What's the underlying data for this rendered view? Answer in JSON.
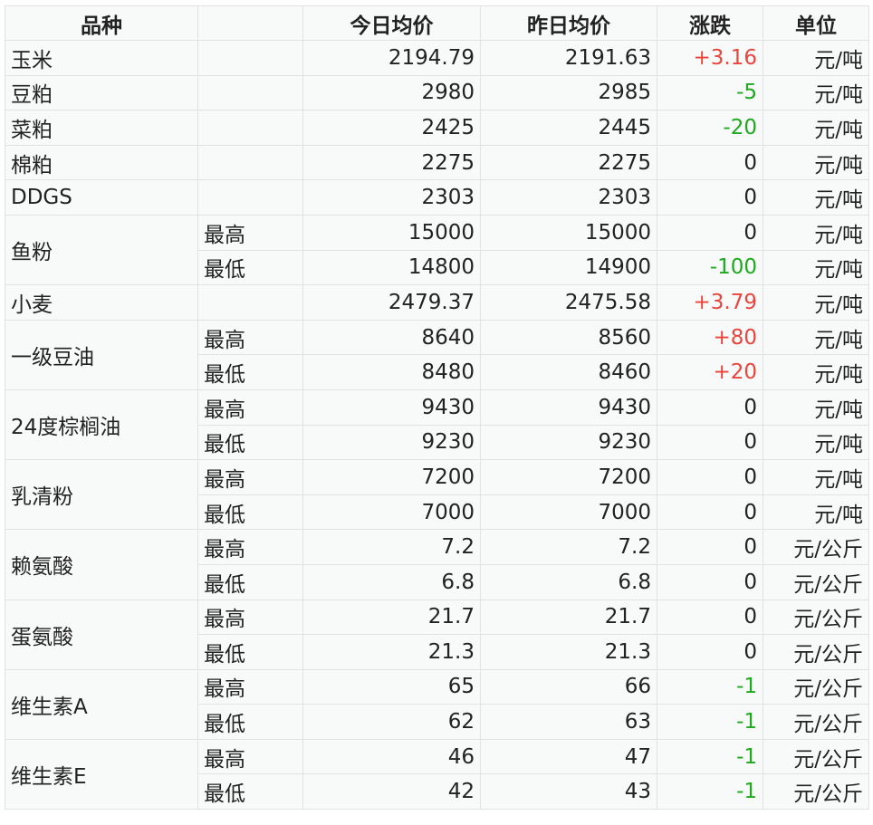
{
  "header": {
    "variety": "品种",
    "sub": "",
    "today": "今日均价",
    "yesterday": "昨日均价",
    "change": "涨跌",
    "unit": "单位"
  },
  "colors": {
    "up": "#e8453c",
    "down": "#1daa1d"
  },
  "rows": [
    {
      "name": "玉米",
      "span": 1,
      "sub": "",
      "today": "2194.79",
      "yesterday": "2191.63",
      "change": "+3.16",
      "dir": "up",
      "unit": "元/吨"
    },
    {
      "name": "豆粕",
      "span": 1,
      "sub": "",
      "today": "2980",
      "yesterday": "2985",
      "change": "-5",
      "dir": "down",
      "unit": "元/吨"
    },
    {
      "name": "菜粕",
      "span": 1,
      "sub": "",
      "today": "2425",
      "yesterday": "2445",
      "change": "-20",
      "dir": "down",
      "unit": "元/吨"
    },
    {
      "name": "棉粕",
      "span": 1,
      "sub": "",
      "today": "2275",
      "yesterday": "2275",
      "change": "0",
      "dir": "flat",
      "unit": "元/吨"
    },
    {
      "name": "DDGS",
      "span": 1,
      "sub": "",
      "today": "2303",
      "yesterday": "2303",
      "change": "0",
      "dir": "flat",
      "unit": "元/吨"
    },
    {
      "name": "鱼粉",
      "span": 2,
      "sub": "最高",
      "today": "15000",
      "yesterday": "15000",
      "change": "0",
      "dir": "flat",
      "unit": "元/吨"
    },
    {
      "sub": "最低",
      "today": "14800",
      "yesterday": "14900",
      "change": "-100",
      "dir": "down",
      "unit": "元/吨"
    },
    {
      "name": "小麦",
      "span": 1,
      "sub": "",
      "today": "2479.37",
      "yesterday": "2475.58",
      "change": "+3.79",
      "dir": "up",
      "unit": "元/吨"
    },
    {
      "name": "一级豆油",
      "span": 2,
      "sub": "最高",
      "today": "8640",
      "yesterday": "8560",
      "change": "+80",
      "dir": "up",
      "unit": "元/吨"
    },
    {
      "sub": "最低",
      "today": "8480",
      "yesterday": "8460",
      "change": "+20",
      "dir": "up",
      "unit": "元/吨"
    },
    {
      "name": "24度棕榈油",
      "span": 2,
      "sub": "最高",
      "today": "9430",
      "yesterday": "9430",
      "change": "0",
      "dir": "flat",
      "unit": "元/吨"
    },
    {
      "sub": "最低",
      "today": "9230",
      "yesterday": "9230",
      "change": "0",
      "dir": "flat",
      "unit": "元/吨"
    },
    {
      "name": "乳清粉",
      "span": 2,
      "sub": "最高",
      "today": "7200",
      "yesterday": "7200",
      "change": "0",
      "dir": "flat",
      "unit": "元/吨"
    },
    {
      "sub": "最低",
      "today": "7000",
      "yesterday": "7000",
      "change": "0",
      "dir": "flat",
      "unit": "元/吨"
    },
    {
      "name": "赖氨酸",
      "span": 2,
      "sub": "最高",
      "today": "7.2",
      "yesterday": "7.2",
      "change": "0",
      "dir": "flat",
      "unit": "元/公斤"
    },
    {
      "sub": "最低",
      "today": "6.8",
      "yesterday": "6.8",
      "change": "0",
      "dir": "flat",
      "unit": "元/公斤"
    },
    {
      "name": "蛋氨酸",
      "span": 2,
      "sub": "最高",
      "today": "21.7",
      "yesterday": "21.7",
      "change": "0",
      "dir": "flat",
      "unit": "元/公斤"
    },
    {
      "sub": "最低",
      "today": "21.3",
      "yesterday": "21.3",
      "change": "0",
      "dir": "flat",
      "unit": "元/公斤"
    },
    {
      "name": "维生素A",
      "span": 2,
      "sub": "最高",
      "today": "65",
      "yesterday": "66",
      "change": "-1",
      "dir": "down",
      "unit": "元/公斤"
    },
    {
      "sub": "最低",
      "today": "62",
      "yesterday": "63",
      "change": "-1",
      "dir": "down",
      "unit": "元/公斤"
    },
    {
      "name": "维生素E",
      "span": 2,
      "sub": "最高",
      "today": "46",
      "yesterday": "47",
      "change": "-1",
      "dir": "down",
      "unit": "元/公斤"
    },
    {
      "sub": "最低",
      "today": "42",
      "yesterday": "43",
      "change": "-1",
      "dir": "down",
      "unit": "元/公斤"
    }
  ]
}
